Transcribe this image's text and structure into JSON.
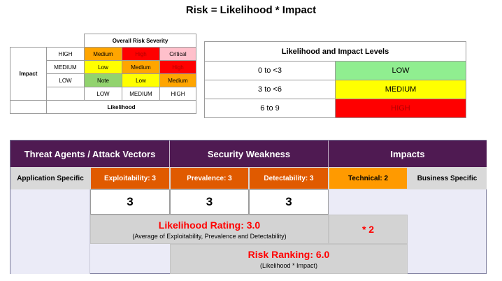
{
  "title": "Risk = Likelihood * Impact",
  "severity": {
    "header": "Overall Risk Severity",
    "impact_label": "Impact",
    "likelihood_label": "Likelihood",
    "rows": [
      {
        "label": "HIGH",
        "cells": [
          "Medium",
          "High",
          "Critical"
        ]
      },
      {
        "label": "MEDIUM",
        "cells": [
          "Low",
          "Medium",
          "High"
        ]
      },
      {
        "label": "LOW",
        "cells": [
          "Note",
          "Low",
          "Medium"
        ]
      }
    ],
    "columns": [
      "LOW",
      "MEDIUM",
      "HIGH"
    ],
    "colors": {
      "Note": "#92d36e",
      "Low": "#ffff00",
      "Medium": "#ffa500",
      "High": "#ff0000",
      "Critical": "#ffc0cb"
    }
  },
  "levels": {
    "header": "Likelihood and Impact Levels",
    "rows": [
      {
        "range": "0 to <3",
        "level": "LOW",
        "color": "#90ee90"
      },
      {
        "range": "3 to <6",
        "level": "MEDIUM",
        "color": "#ffff00"
      },
      {
        "range": "6 to 9",
        "level": "HIGH",
        "color": "#ff0000"
      }
    ]
  },
  "risk": {
    "headers": [
      "Threat Agents / Attack Vectors",
      "Security Weakness",
      "Impacts"
    ],
    "factors": [
      {
        "label": "Application Specific",
        "color": "#d9d9d9",
        "text": "#000000"
      },
      {
        "label": "Exploitability: 3",
        "color": "#e05a00",
        "text": "#ffffff"
      },
      {
        "label": "Prevalence: 3",
        "color": "#e05a00",
        "text": "#ffffff"
      },
      {
        "label": "Detectability: 3",
        "color": "#e05a00",
        "text": "#ffffff"
      },
      {
        "label": "Technical: 2",
        "color": "#ff9a00",
        "text": "#000000"
      },
      {
        "label": "Business Specific",
        "color": "#d9d9d9",
        "text": "#000000"
      }
    ],
    "scores": [
      "3",
      "3",
      "3"
    ],
    "likelihood_rating": "Likelihood Rating: 3.0",
    "likelihood_note": "(Average of Exploitability, Prevalence and Detectability)",
    "impact_multiplier": "* 2",
    "risk_ranking": "Risk Ranking: 6.0",
    "risk_note": "(Likelihood * Impact)",
    "accent": "#ff0000"
  }
}
